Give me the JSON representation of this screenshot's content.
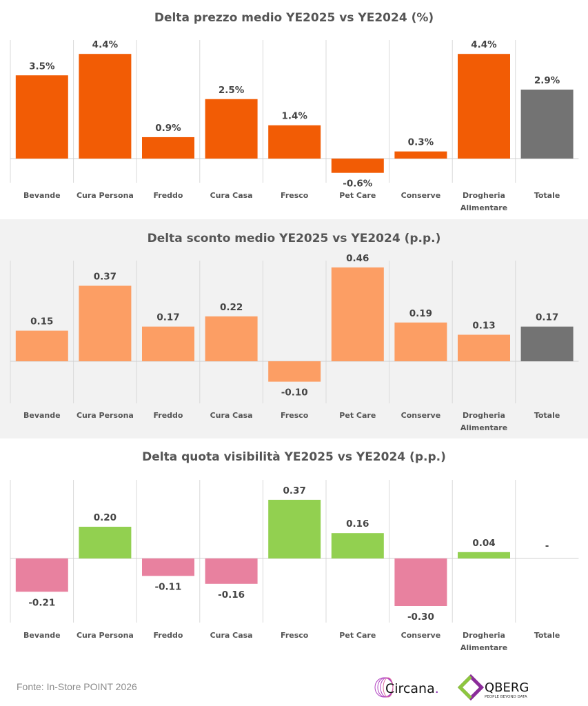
{
  "colors": {
    "orange": "#f25c05",
    "light_orange": "#fc9e64",
    "total_grey": "#737373",
    "green": "#92d050",
    "pink": "#e8819f",
    "panel_bg": "#f2f2f2"
  },
  "chart_data": [
    {
      "type": "bar",
      "title": "Delta prezzo medio YE2025 vs YE2024 (%)",
      "categories": [
        "Bevande",
        "Cura Persona",
        "Freddo",
        "Cura Casa",
        "Fresco",
        "Pet Care",
        "Conserve",
        "Drogheria Alimentare",
        "Totale"
      ],
      "values": [
        3.5,
        4.4,
        0.9,
        2.5,
        1.4,
        -0.6,
        0.3,
        4.4,
        2.9
      ],
      "labels": [
        "3.5%",
        "4.4%",
        "0.9%",
        "2.5%",
        "1.4%",
        "-0.6%",
        "0.3%",
        "4.4%",
        "2.9%"
      ],
      "bar_color": "#f25c05",
      "total_color": "#737373",
      "background": "#ffffff"
    },
    {
      "type": "bar",
      "title": "Delta sconto medio YE2025 vs YE2024 (p.p.)",
      "categories": [
        "Bevande",
        "Cura Persona",
        "Freddo",
        "Cura Casa",
        "Fresco",
        "Pet Care",
        "Conserve",
        "Drogheria Alimentare",
        "Totale"
      ],
      "values": [
        0.15,
        0.37,
        0.17,
        0.22,
        -0.1,
        0.46,
        0.19,
        0.13,
        0.17
      ],
      "labels": [
        "0.15",
        "0.37",
        "0.17",
        "0.22",
        "-0.10",
        "0.46",
        "0.19",
        "0.13",
        "0.17"
      ],
      "bar_color": "#fc9e64",
      "total_color": "#737373",
      "background": "#f2f2f2"
    },
    {
      "type": "bar",
      "title": "Delta quota visibilità YE2025 vs YE2024 (p.p.)",
      "categories": [
        "Bevande",
        "Cura Persona",
        "Freddo",
        "Cura Casa",
        "Fresco",
        "Pet Care",
        "Conserve",
        "Drogheria Alimentare",
        "Totale"
      ],
      "values": [
        -0.21,
        0.2,
        -0.11,
        -0.16,
        0.37,
        0.16,
        -0.3,
        0.04,
        null
      ],
      "labels": [
        "-0.21",
        "0.20",
        "-0.11",
        "-0.16",
        "0.37",
        "0.16",
        "-0.30",
        "0.04",
        "-"
      ],
      "positive_color": "#92d050",
      "negative_color": "#e8819f",
      "background": "#ffffff"
    }
  ],
  "footer": {
    "source": "Fonte: In-Store POINT 2026"
  },
  "logos": {
    "circana": "Circana.",
    "qberg": "QBERG",
    "qberg_tagline": "PEOPLE BEYOND DATA"
  }
}
